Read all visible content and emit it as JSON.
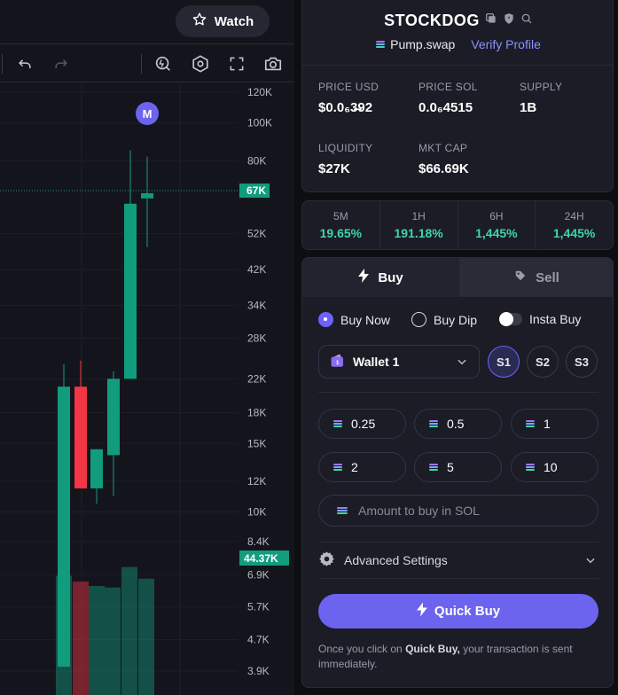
{
  "header": {
    "watch_label": "Watch"
  },
  "chart": {
    "price_axis": [
      "120K",
      "100K",
      "80K",
      "67K",
      "52K",
      "42K",
      "34K",
      "28K",
      "22K",
      "18K",
      "15K",
      "12K",
      "10K",
      "8.4K",
      "6.9K",
      "5.7K",
      "4.7K",
      "3.9K"
    ],
    "current_price_tag": "67K",
    "volume_tag": "44.37K",
    "marker_letter": "M",
    "up_color": "#129c7e",
    "down_color": "#f23645"
  },
  "chart_data": {
    "type": "candlestick",
    "scale": "log",
    "ylim": [
      3500,
      130000
    ],
    "candles": [
      {
        "open": 4000,
        "high": 24000,
        "low": 4000,
        "close": 21000,
        "direction": "up"
      },
      {
        "open": 21000,
        "high": 24500,
        "low": 11500,
        "close": 11500,
        "direction": "down"
      },
      {
        "open": 11500,
        "high": 14500,
        "low": 10500,
        "close": 14500,
        "direction": "up"
      },
      {
        "open": 14000,
        "high": 23000,
        "low": 11000,
        "close": 22000,
        "direction": "up"
      },
      {
        "open": 22000,
        "high": 85000,
        "low": 22000,
        "close": 62000,
        "direction": "up"
      },
      {
        "open": 64000,
        "high": 82000,
        "low": 48000,
        "close": 66000,
        "direction": "up"
      }
    ],
    "volume_bars": [
      {
        "level": 0.82,
        "direction": "up"
      },
      {
        "level": 0.78,
        "direction": "down"
      },
      {
        "level": 0.75,
        "direction": "up"
      },
      {
        "level": 0.74,
        "direction": "up"
      },
      {
        "level": 0.88,
        "direction": "up"
      },
      {
        "level": 0.8,
        "direction": "up"
      }
    ]
  },
  "token": {
    "name": "STOCKDOG",
    "dex": "Pump.swap",
    "verify_label": "Verify Profile",
    "stats": [
      {
        "label": "PRICE USD",
        "value": "$0.0₆3̶92"
      },
      {
        "label": "PRICE SOL",
        "value": "0.0₆4515"
      },
      {
        "label": "SUPPLY",
        "value": "1B"
      },
      {
        "label": "LIQUIDITY",
        "value": "$27K"
      },
      {
        "label": "MKT CAP",
        "value": "$66.69K"
      }
    ]
  },
  "changes": [
    {
      "label": "5M",
      "value": "19.65%"
    },
    {
      "label": "1H",
      "value": "191.18%"
    },
    {
      "label": "6H",
      "value": "1,445%"
    },
    {
      "label": "24H",
      "value": "1,445%"
    }
  ],
  "trade": {
    "buy_tab": "Buy",
    "sell_tab": "Sell",
    "mode_buy_now": "Buy Now",
    "mode_buy_dip": "Buy Dip",
    "mode_insta_buy": "Insta Buy",
    "wallet": "Wallet 1",
    "slots": [
      "S1",
      "S2",
      "S3"
    ],
    "amounts": [
      "0.25",
      "0.5",
      "1",
      "2",
      "5",
      "10"
    ],
    "amount_placeholder": "Amount to buy in SOL",
    "advanced_label": "Advanced Settings",
    "quick_buy_label": "Quick Buy",
    "note_prefix": "Once you click on",
    "note_strong": "Quick Buy,",
    "note_suffix": "your transaction is sent immediately.",
    "accent": "#6c63ee"
  }
}
